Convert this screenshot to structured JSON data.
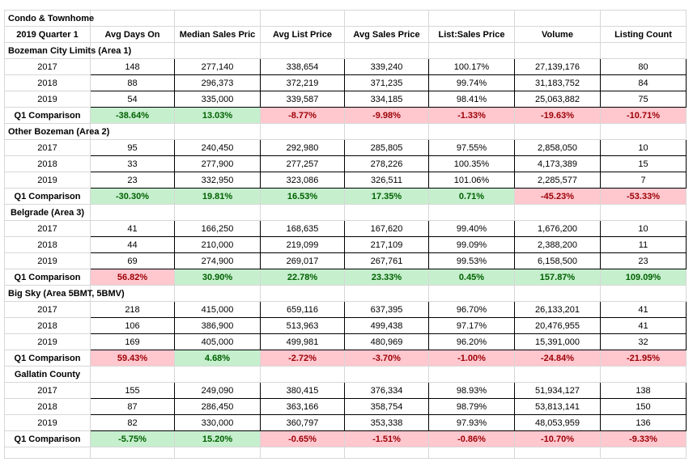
{
  "title": "Condo & Townhome",
  "headers": [
    "2019 Quarter 1",
    "Avg Days On",
    "Median Sales Pric",
    "Avg List Price",
    "Avg Sales Price",
    "List:Sales Price",
    "Volume",
    "Listing Count"
  ],
  "colors": {
    "positive_bg": "#c6efce",
    "positive_text": "#006100",
    "negative_bg": "#ffc7ce",
    "negative_text": "#9c0006",
    "grid": "#d7d7d7"
  },
  "sections": [
    {
      "name": "Bozeman City Limits (Area 1)",
      "rows": [
        {
          "year": "2017",
          "values": [
            "148",
            "277,140",
            "338,654",
            "339,240",
            "100.17%",
            "27,139,176",
            "80"
          ]
        },
        {
          "year": "2018",
          "values": [
            "88",
            "296,373",
            "372,219",
            "371,235",
            "99.74%",
            "31,183,752",
            "84"
          ]
        },
        {
          "year": "2019",
          "values": [
            "54",
            "335,000",
            "339,587",
            "334,185",
            "98.41%",
            "25,063,882",
            "75"
          ]
        }
      ],
      "comparison": {
        "label": "Q1 Comparison",
        "values": [
          "-38.64%",
          "13.03%",
          "-8.77%",
          "-9.98%",
          "-1.33%",
          "-19.63%",
          "-10.71%"
        ],
        "signs": [
          "pos",
          "pos",
          "neg",
          "neg",
          "neg",
          "neg",
          "neg"
        ]
      }
    },
    {
      "name": "Other Bozeman (Area 2)",
      "rows": [
        {
          "year": "2017",
          "values": [
            "95",
            "240,450",
            "292,980",
            "285,805",
            "97.55%",
            "2,858,050",
            "10"
          ]
        },
        {
          "year": "2018",
          "values": [
            "33",
            "277,900",
            "277,257",
            "278,226",
            "100.35%",
            "4,173,389",
            "15"
          ]
        },
        {
          "year": "2019",
          "values": [
            "23",
            "332,950",
            "323,086",
            "326,511",
            "101.06%",
            "2,285,577",
            "7"
          ]
        }
      ],
      "comparison": {
        "label": "Q1 Comparison",
        "values": [
          "-30.30%",
          "19.81%",
          "16.53%",
          "17.35%",
          "0.71%",
          "-45.23%",
          "-53.33%"
        ],
        "signs": [
          "pos",
          "pos",
          "pos",
          "pos",
          "pos",
          "neg",
          "neg"
        ]
      }
    },
    {
      "name": "Belgrade (Area 3)",
      "rows": [
        {
          "year": "2017",
          "values": [
            "41",
            "166,250",
            "168,635",
            "167,620",
            "99.40%",
            "1,676,200",
            "10"
          ]
        },
        {
          "year": "2018",
          "values": [
            "44",
            "210,000",
            "219,099",
            "217,109",
            "99.09%",
            "2,388,200",
            "11"
          ]
        },
        {
          "year": "2019",
          "values": [
            "69",
            "274,900",
            "269,017",
            "267,761",
            "99.53%",
            "6,158,500",
            "23"
          ]
        }
      ],
      "comparison": {
        "label": "Q1 Comparison",
        "values": [
          "56.82%",
          "30.90%",
          "22.78%",
          "23.33%",
          "0.45%",
          "157.87%",
          "109.09%"
        ],
        "signs": [
          "neg",
          "pos",
          "pos",
          "pos",
          "pos",
          "pos",
          "pos"
        ]
      }
    },
    {
      "name": "Big Sky (Area 5BMT, 5BMV)",
      "rows": [
        {
          "year": "2017",
          "values": [
            "218",
            "415,000",
            "659,116",
            "637,395",
            "96.70%",
            "26,133,201",
            "41"
          ]
        },
        {
          "year": "2018",
          "values": [
            "106",
            "386,900",
            "513,963",
            "499,438",
            "97.17%",
            "20,476,955",
            "41"
          ]
        },
        {
          "year": "2019",
          "values": [
            "169",
            "405,000",
            "499,981",
            "480,969",
            "96.20%",
            "15,391,000",
            "32"
          ]
        }
      ],
      "comparison": {
        "label": "Q1 Comparison",
        "values": [
          "59.43%",
          "4.68%",
          "-2.72%",
          "-3.70%",
          "-1.00%",
          "-24.84%",
          "-21.95%"
        ],
        "signs": [
          "neg",
          "pos",
          "neg",
          "neg",
          "neg",
          "neg",
          "neg"
        ]
      }
    },
    {
      "name": "Gallatin County",
      "rows": [
        {
          "year": "2017",
          "values": [
            "155",
            "249,090",
            "380,415",
            "376,334",
            "98.93%",
            "51,934,127",
            "138"
          ]
        },
        {
          "year": "2018",
          "values": [
            "87",
            "286,450",
            "363,166",
            "358,754",
            "98.79%",
            "53,813,141",
            "150"
          ]
        },
        {
          "year": "2019",
          "values": [
            "82",
            "330,000",
            "360,797",
            "353,338",
            "97.93%",
            "48,053,959",
            "136"
          ]
        }
      ],
      "comparison": {
        "label": "Q1 Comparison",
        "values": [
          "-5.75%",
          "15.20%",
          "-0.65%",
          "-1.51%",
          "-0.86%",
          "-10.70%",
          "-9.33%"
        ],
        "signs": [
          "pos",
          "pos",
          "neg",
          "neg",
          "neg",
          "neg",
          "neg"
        ]
      }
    }
  ]
}
